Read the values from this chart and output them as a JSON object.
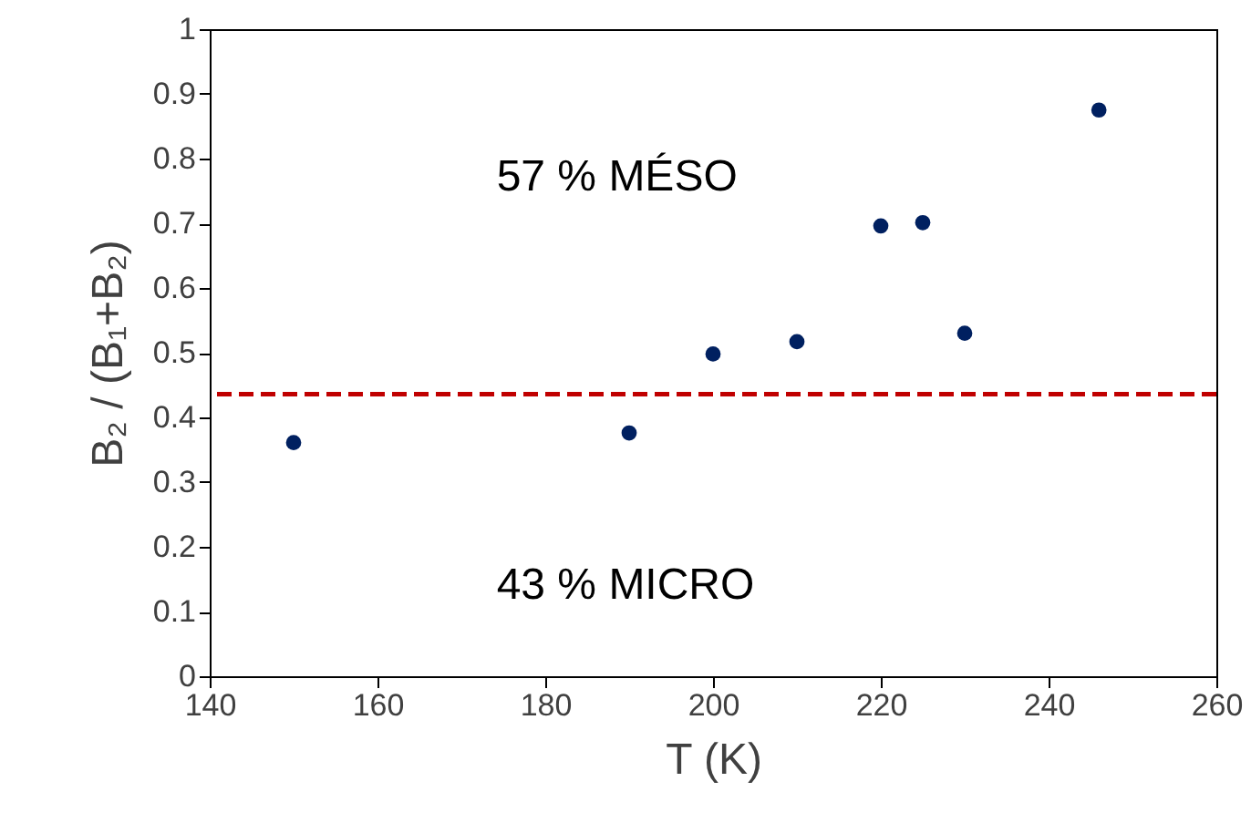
{
  "chart_data": {
    "type": "scatter",
    "xlabel": "T (K)",
    "ylabel": "B₂ / (B₁+B₂)",
    "x": [
      150,
      190,
      200,
      210,
      220,
      225,
      230,
      246
    ],
    "series": [
      {
        "color": "#002060",
        "values": [
          0.361,
          0.376,
          0.498,
          0.517,
          0.696,
          0.701,
          0.53,
          0.875
        ]
      }
    ],
    "xlim": [
      140,
      260
    ],
    "xticks": [
      140,
      160,
      180,
      200,
      220,
      240,
      260
    ],
    "ylim": [
      0,
      1
    ],
    "yticks": [
      0,
      0.1,
      0.2,
      0.3,
      0.4,
      0.5,
      0.6,
      0.7,
      0.8,
      0.9,
      1
    ],
    "ref_lines": [
      {
        "axis": "y",
        "value": 0.436,
        "color": "#c00000",
        "line_style": "dashed"
      }
    ],
    "annotations": [
      "57 % MÉSO",
      "43 % MICRO"
    ],
    "marker": "circle",
    "grid": false
  }
}
